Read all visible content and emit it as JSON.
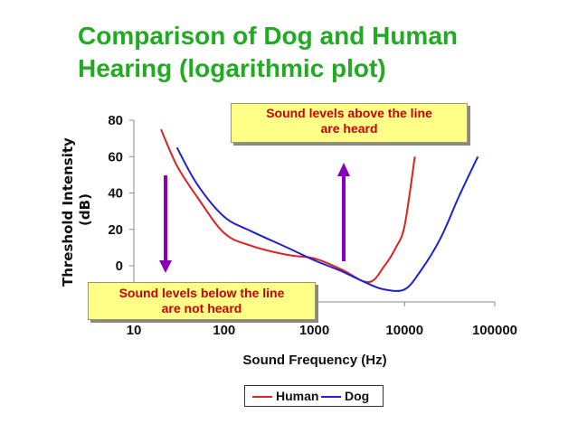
{
  "chart_data": {
    "type": "line",
    "title_lines": [
      "Comparison of Dog and Human",
      "Hearing (logarithmic plot)"
    ],
    "xlabel": "Sound Frequency (Hz)",
    "ylabel_lines": [
      "Threshold Intensity",
      "(dB)"
    ],
    "x_scale": "log",
    "xlim": [
      10,
      100000
    ],
    "ylim": [
      -10,
      80
    ],
    "x_ticks": [
      "10",
      "100",
      "1000",
      "10000",
      "100000"
    ],
    "y_ticks": [
      "80",
      "60",
      "40",
      "20",
      "0"
    ],
    "grid": false,
    "legend_position": "bottom-center",
    "series": [
      {
        "name": "Human",
        "color": "#e02020",
        "points": [
          [
            20,
            75
          ],
          [
            30,
            55
          ],
          [
            50,
            38
          ],
          [
            100,
            18
          ],
          [
            200,
            11
          ],
          [
            500,
            6
          ],
          [
            1000,
            4
          ],
          [
            2000,
            -2
          ],
          [
            4000,
            -9
          ],
          [
            6000,
            0
          ],
          [
            8000,
            10
          ],
          [
            10000,
            22
          ],
          [
            13000,
            60
          ]
        ]
      },
      {
        "name": "Dog",
        "color": "#2020d0",
        "points": [
          [
            30,
            65
          ],
          [
            50,
            45
          ],
          [
            100,
            27
          ],
          [
            200,
            19
          ],
          [
            500,
            10
          ],
          [
            1000,
            3
          ],
          [
            2000,
            -3
          ],
          [
            4000,
            -10
          ],
          [
            6000,
            -13
          ],
          [
            10000,
            -13
          ],
          [
            15000,
            -3
          ],
          [
            25000,
            15
          ],
          [
            40000,
            38
          ],
          [
            65000,
            60
          ]
        ]
      }
    ],
    "annotations": {
      "top_lines": [
        "Sound levels above the line",
        "are heard"
      ],
      "bottom_lines": [
        "Sound levels below the line",
        "are not heard"
      ]
    },
    "arrow_color": "#8800bb"
  }
}
